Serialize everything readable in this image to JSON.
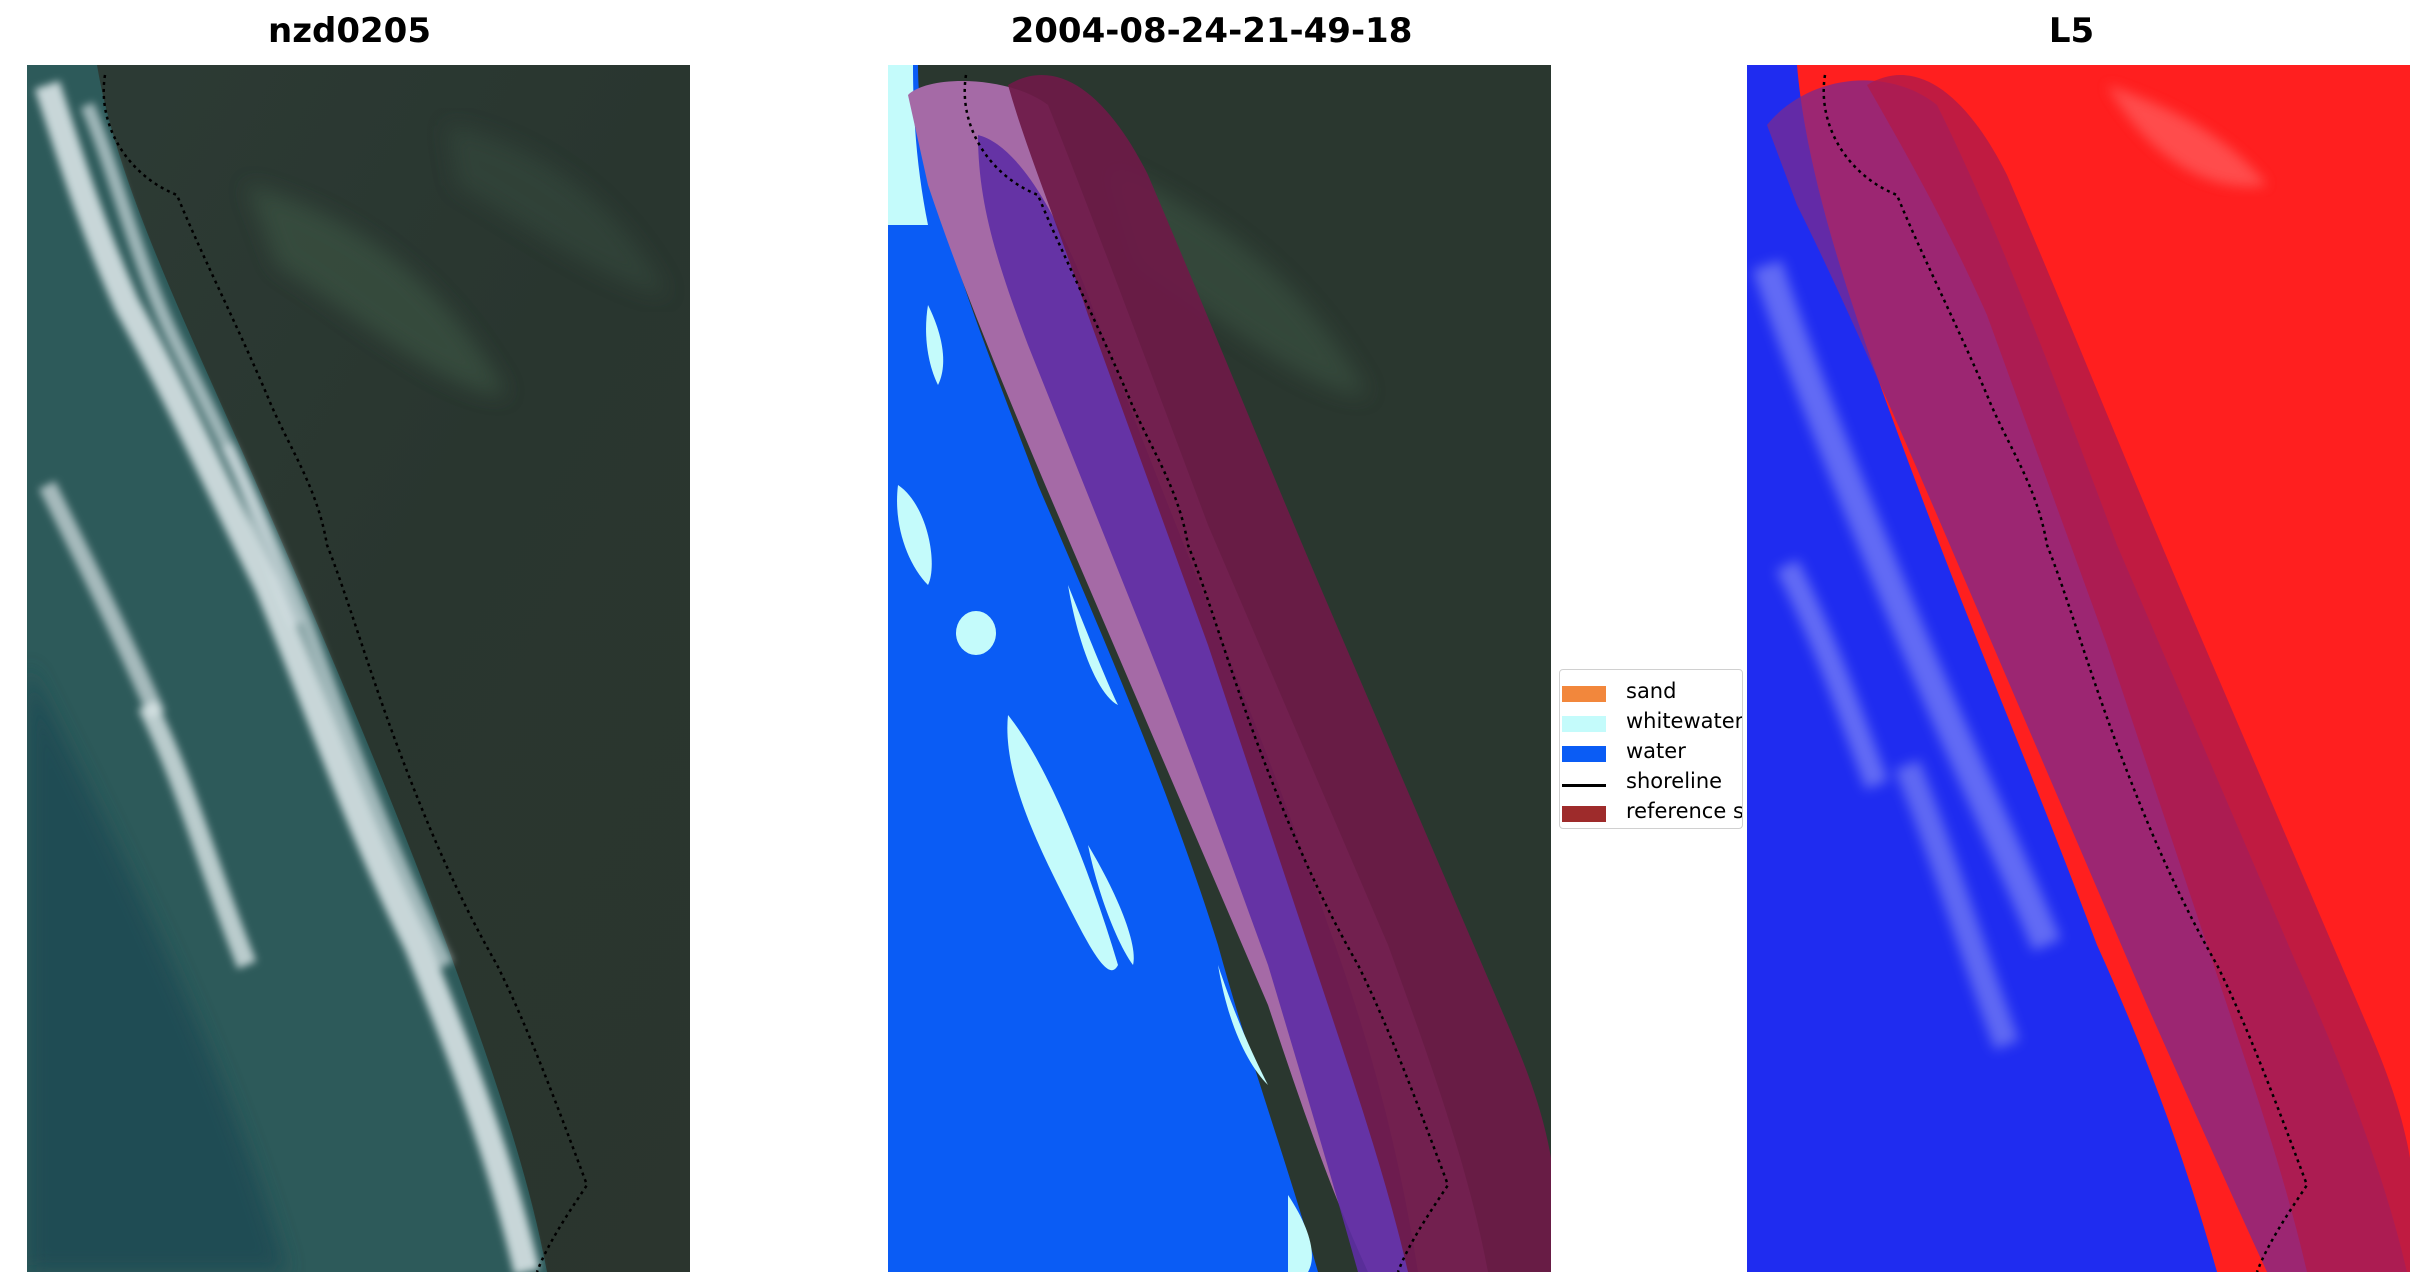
{
  "panels": [
    {
      "title": "nzd0205",
      "kind": "rgb-image"
    },
    {
      "title": "2004-08-24-21-49-18",
      "kind": "classified-image"
    },
    {
      "title": "L5",
      "kind": "index-image"
    }
  ],
  "legend": {
    "items": [
      {
        "label": "sand",
        "type": "patch",
        "color": "#f2873c"
      },
      {
        "label": "whitewater",
        "type": "patch",
        "color": "#c4fbfb"
      },
      {
        "label": "water",
        "type": "patch",
        "color": "#0a5cf5"
      },
      {
        "label": "shoreline",
        "type": "line",
        "color": "#000000"
      },
      {
        "label": "reference s",
        "type": "patch",
        "color": "#9e2b2b"
      }
    ]
  },
  "colors": {
    "land_dark": "#26332f",
    "ocean_shallow": "#2b5a58",
    "surf": "#d9e6e8",
    "water_class": "#0a5cf5",
    "whitewater_class": "#c4fbfb",
    "sand_overlay": "#a56aa6",
    "land_overlay": "#6a1a47",
    "index_positive": "#ff2020",
    "index_negative": "#1f2cf0"
  }
}
